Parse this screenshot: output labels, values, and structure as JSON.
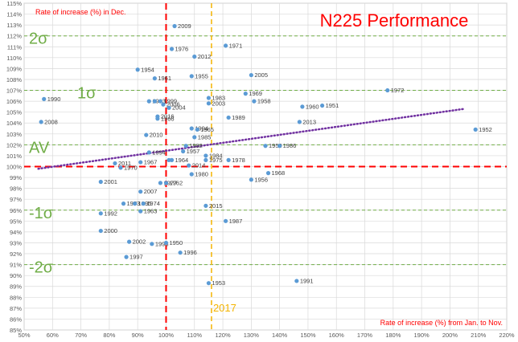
{
  "chart_data": {
    "type": "scatter",
    "title": "N225 Performance",
    "ylabel": "Rate of increase (%) in Dec.",
    "xlabel": "Rate of increase (%) from Jan. to Nov.",
    "xlim": [
      50,
      220
    ],
    "ylim": [
      85,
      115
    ],
    "x_ticks": [
      "50%",
      "60%",
      "70%",
      "80%",
      "90%",
      "100%",
      "110%",
      "120%",
      "130%",
      "140%",
      "150%",
      "160%",
      "170%",
      "180%",
      "190%",
      "200%",
      "210%",
      "220%"
    ],
    "y_ticks": [
      "85%",
      "86%",
      "87%",
      "88%",
      "89%",
      "90%",
      "91%",
      "92%",
      "93%",
      "94%",
      "95%",
      "96%",
      "97%",
      "98%",
      "99%",
      "100%",
      "101%",
      "102%",
      "103%",
      "104%",
      "105%",
      "106%",
      "107%",
      "108%",
      "109%",
      "110%",
      "111%",
      "112%",
      "113%",
      "114%",
      "115%"
    ],
    "reference_lines": {
      "y": [
        {
          "value": 112,
          "label": "2σ"
        },
        {
          "value": 107,
          "label": "1σ"
        },
        {
          "value": 102,
          "label": "AV"
        },
        {
          "value": 96,
          "label": "-1σ"
        },
        {
          "value": 91,
          "label": "-2σ"
        }
      ],
      "y_break_even": 100,
      "x_break_even": 100,
      "x_marker": {
        "value": 116,
        "label": "2017"
      }
    },
    "trendline": {
      "x": [
        55,
        205
      ],
      "y": [
        99.8,
        105.3
      ],
      "style": "dotted"
    },
    "points": [
      {
        "x": 101,
        "y": 100.6,
        "label": ""
      },
      {
        "x": 57,
        "y": 106.2,
        "label": "1990"
      },
      {
        "x": 56,
        "y": 104.1,
        "label": "2008"
      },
      {
        "x": 77,
        "y": 98.6,
        "label": "2001"
      },
      {
        "x": 82,
        "y": 100.3,
        "label": "2011"
      },
      {
        "x": 84,
        "y": 99.9,
        "label": "1970"
      },
      {
        "x": 77,
        "y": 95.7,
        "label": "1992"
      },
      {
        "x": 77,
        "y": 94.1,
        "label": "2000"
      },
      {
        "x": 85,
        "y": 96.6,
        "label": "1973"
      },
      {
        "x": 87,
        "y": 93.1,
        "label": "2002"
      },
      {
        "x": 86,
        "y": 91.7,
        "label": "1997"
      },
      {
        "x": 91,
        "y": 100.4,
        "label": "1967"
      },
      {
        "x": 94,
        "y": 101.3,
        "label": "1994"
      },
      {
        "x": 91,
        "y": 97.7,
        "label": "2007"
      },
      {
        "x": 91,
        "y": 95.9,
        "label": "1963"
      },
      {
        "x": 89,
        "y": 96.6,
        "label": "1995"
      },
      {
        "x": 92,
        "y": 96.6,
        "label": "1974"
      },
      {
        "x": 95,
        "y": 92.9,
        "label": "1998"
      },
      {
        "x": 90,
        "y": 108.9,
        "label": "1954"
      },
      {
        "x": 96,
        "y": 108.1,
        "label": "1961"
      },
      {
        "x": 94,
        "y": 106.0,
        "label": "1993"
      },
      {
        "x": 96,
        "y": 106.0,
        "label": ""
      },
      {
        "x": 98,
        "y": 106.0,
        "label": "1999"
      },
      {
        "x": 99,
        "y": 105.7,
        "label": "2006"
      },
      {
        "x": 101,
        "y": 105.4,
        "label": "2004"
      },
      {
        "x": 97,
        "y": 104.6,
        "label": "2016"
      },
      {
        "x": 97,
        "y": 104.4,
        "label": "1966"
      },
      {
        "x": 93,
        "y": 102.9,
        "label": "2010"
      },
      {
        "x": 98,
        "y": 98.5,
        "label": "1977"
      },
      {
        "x": 100,
        "y": 98.5,
        "label": "1962"
      },
      {
        "x": 100,
        "y": 93.0,
        "label": "1950"
      },
      {
        "x": 103,
        "y": 112.9,
        "label": "2009"
      },
      {
        "x": 102,
        "y": 110.8,
        "label": "1976"
      },
      {
        "x": 110,
        "y": 110.1,
        "label": "2012"
      },
      {
        "x": 109,
        "y": 108.3,
        "label": "1955"
      },
      {
        "x": 102,
        "y": 100.6,
        "label": "1964"
      },
      {
        "x": 106,
        "y": 101.4,
        "label": "1957"
      },
      {
        "x": 107,
        "y": 101.9,
        "label": "1982"
      },
      {
        "x": 109,
        "y": 103.5,
        "label": "1994"
      },
      {
        "x": 111,
        "y": 103.4,
        "label": "1965"
      },
      {
        "x": 110,
        "y": 102.7,
        "label": "1985"
      },
      {
        "x": 109,
        "y": 99.3,
        "label": "1980"
      },
      {
        "x": 108,
        "y": 100.1,
        "label": "2014"
      },
      {
        "x": 105,
        "y": 92.1,
        "label": "1996"
      },
      {
        "x": 115,
        "y": 106.3,
        "label": "1983"
      },
      {
        "x": 115,
        "y": 105.8,
        "label": "2003"
      },
      {
        "x": 114,
        "y": 101.0,
        "label": "1984"
      },
      {
        "x": 114,
        "y": 100.6,
        "label": "1975"
      },
      {
        "x": 122,
        "y": 100.6,
        "label": "1978"
      },
      {
        "x": 114,
        "y": 96.4,
        "label": "2015"
      },
      {
        "x": 121,
        "y": 95.0,
        "label": "1987"
      },
      {
        "x": 115,
        "y": 89.3,
        "label": "1953"
      },
      {
        "x": 121,
        "y": 111.1,
        "label": "1971"
      },
      {
        "x": 128,
        "y": 106.7,
        "label": "1969"
      },
      {
        "x": 131,
        "y": 106.0,
        "label": "1958"
      },
      {
        "x": 122,
        "y": 104.5,
        "label": "1989"
      },
      {
        "x": 130,
        "y": 108.4,
        "label": "2005"
      },
      {
        "x": 130,
        "y": 98.8,
        "label": "1956"
      },
      {
        "x": 135,
        "y": 101.9,
        "label": "1959"
      },
      {
        "x": 140,
        "y": 101.9,
        "label": "1986"
      },
      {
        "x": 136,
        "y": 99.4,
        "label": "1968"
      },
      {
        "x": 148,
        "y": 105.5,
        "label": "1960"
      },
      {
        "x": 155,
        "y": 105.6,
        "label": "1951"
      },
      {
        "x": 147,
        "y": 104.1,
        "label": "2013"
      },
      {
        "x": 146,
        "y": 89.5,
        "label": "1991"
      },
      {
        "x": 178,
        "y": 107.0,
        "label": "1972"
      },
      {
        "x": 209,
        "y": 103.4,
        "label": "1952"
      }
    ],
    "colors": {
      "points": "#5b9bd5",
      "sigma_lines": "#70ad47",
      "sigma_labels": "#70ad47",
      "break_even": "#ff0000",
      "marker_2017": "#f4b400",
      "trend": "#7030a0",
      "title": "#ff0000",
      "axis_labels": "#ff0000"
    }
  }
}
